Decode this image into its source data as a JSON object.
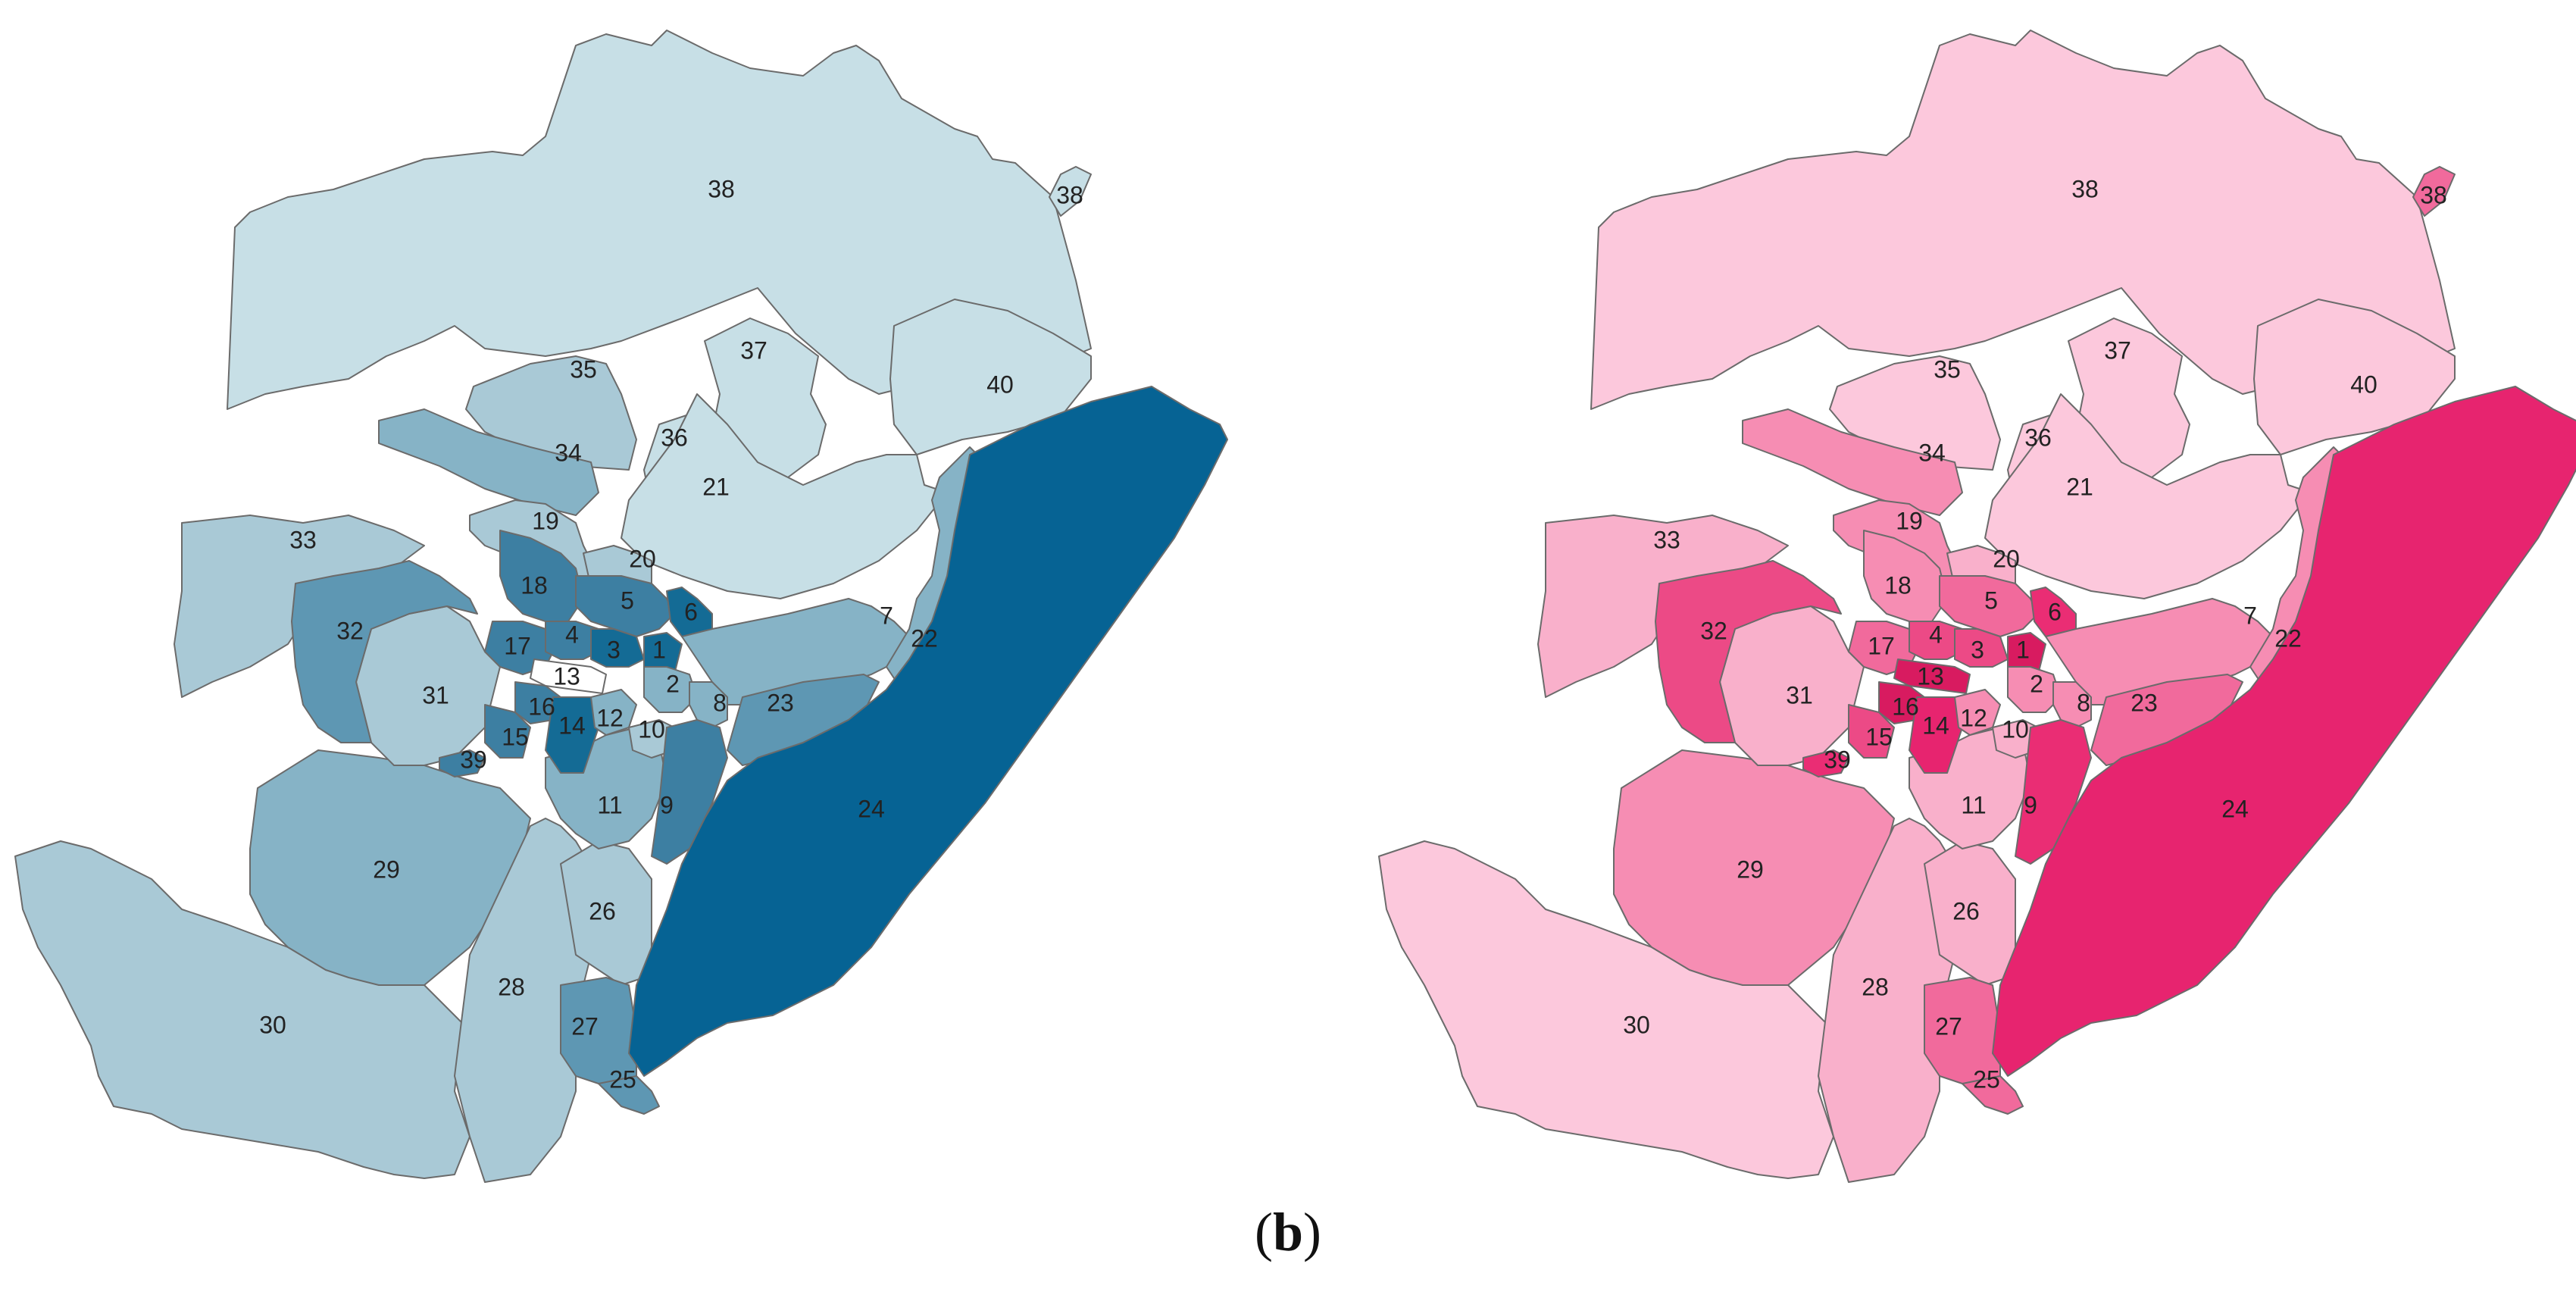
{
  "caption": {
    "open": "(",
    "letter": "b",
    "close": ")"
  },
  "maps": [
    {
      "name": "left-map",
      "palette": [
        "#c7dfe6",
        "#a9c9d6",
        "#86b3c6",
        "#5e97b3",
        "#3d7fa2",
        "#146b95",
        "#066394",
        "#ffffff"
      ],
      "districts": [
        {
          "id": "38",
          "label": "38",
          "level": 0
        },
        {
          "id": "38b",
          "label": "38",
          "level": 0
        },
        {
          "id": "40",
          "label": "40",
          "level": 0
        },
        {
          "id": "37",
          "label": "37",
          "level": 0
        },
        {
          "id": "36",
          "label": "36",
          "level": 0
        },
        {
          "id": "35",
          "label": "35",
          "level": 1
        },
        {
          "id": "34",
          "label": "34",
          "level": 2
        },
        {
          "id": "21",
          "label": "21",
          "level": 0
        },
        {
          "id": "19",
          "label": "19",
          "level": 1
        },
        {
          "id": "33",
          "label": "33",
          "level": 1
        },
        {
          "id": "30",
          "label": "30",
          "level": 1
        },
        {
          "id": "29",
          "label": "29",
          "level": 2
        },
        {
          "id": "28",
          "label": "28",
          "level": 1
        },
        {
          "id": "26",
          "label": "26",
          "level": 1
        },
        {
          "id": "27",
          "label": "27",
          "level": 3
        },
        {
          "id": "25",
          "label": "25",
          "level": 3
        },
        {
          "id": "11",
          "label": "11",
          "level": 2
        },
        {
          "id": "31",
          "label": "31",
          "level": 1
        },
        {
          "id": "32",
          "label": "32",
          "level": 3
        },
        {
          "id": "18",
          "label": "18",
          "level": 4
        },
        {
          "id": "20",
          "label": "20",
          "level": 1
        },
        {
          "id": "5",
          "label": "5",
          "level": 4
        },
        {
          "id": "6",
          "label": "6",
          "level": 5
        },
        {
          "id": "7",
          "label": "7",
          "level": 2
        },
        {
          "id": "22",
          "label": "22",
          "level": 2
        },
        {
          "id": "23",
          "label": "23",
          "level": 3
        },
        {
          "id": "24",
          "label": "24",
          "level": 6
        },
        {
          "id": "17",
          "label": "17",
          "level": 4
        },
        {
          "id": "4",
          "label": "4",
          "level": 4
        },
        {
          "id": "3",
          "label": "3",
          "level": 5
        },
        {
          "id": "1",
          "label": "1",
          "level": 5
        },
        {
          "id": "13",
          "label": "13",
          "level": 7
        },
        {
          "id": "2",
          "label": "2",
          "level": 2
        },
        {
          "id": "8",
          "label": "8",
          "level": 2
        },
        {
          "id": "16",
          "label": "16",
          "level": 4
        },
        {
          "id": "15",
          "label": "15",
          "level": 4
        },
        {
          "id": "14",
          "label": "14",
          "level": 5
        },
        {
          "id": "12",
          "label": "12",
          "level": 2
        },
        {
          "id": "10",
          "label": "10",
          "level": 1
        },
        {
          "id": "9",
          "label": "9",
          "level": 4
        },
        {
          "id": "39",
          "label": "39",
          "level": 4
        }
      ]
    },
    {
      "name": "right-map",
      "palette": [
        "#fcc8dc",
        "#f9b0cb",
        "#f68db3",
        "#f16a9c",
        "#ec4a86",
        "#ea2d74",
        "#e7246f",
        "#d81b60"
      ],
      "districts": [
        {
          "id": "38",
          "label": "38",
          "level": 0
        },
        {
          "id": "38b",
          "label": "38",
          "level": 3
        },
        {
          "id": "40",
          "label": "40",
          "level": 0
        },
        {
          "id": "37",
          "label": "37",
          "level": 0
        },
        {
          "id": "36",
          "label": "36",
          "level": 0
        },
        {
          "id": "35",
          "label": "35",
          "level": 0
        },
        {
          "id": "34",
          "label": "34",
          "level": 2
        },
        {
          "id": "21",
          "label": "21",
          "level": 0
        },
        {
          "id": "19",
          "label": "19",
          "level": 2
        },
        {
          "id": "33",
          "label": "33",
          "level": 1
        },
        {
          "id": "30",
          "label": "30",
          "level": 0
        },
        {
          "id": "29",
          "label": "29",
          "level": 2
        },
        {
          "id": "28",
          "label": "28",
          "level": 1
        },
        {
          "id": "26",
          "label": "26",
          "level": 1
        },
        {
          "id": "27",
          "label": "27",
          "level": 3
        },
        {
          "id": "25",
          "label": "25",
          "level": 3
        },
        {
          "id": "11",
          "label": "11",
          "level": 1
        },
        {
          "id": "31",
          "label": "31",
          "level": 1
        },
        {
          "id": "32",
          "label": "32",
          "level": 4
        },
        {
          "id": "18",
          "label": "18",
          "level": 2
        },
        {
          "id": "20",
          "label": "20",
          "level": 1
        },
        {
          "id": "5",
          "label": "5",
          "level": 3
        },
        {
          "id": "6",
          "label": "6",
          "level": 5
        },
        {
          "id": "7",
          "label": "7",
          "level": 2
        },
        {
          "id": "22",
          "label": "22",
          "level": 2
        },
        {
          "id": "23",
          "label": "23",
          "level": 3
        },
        {
          "id": "24",
          "label": "24",
          "level": 6
        },
        {
          "id": "17",
          "label": "17",
          "level": 3
        },
        {
          "id": "4",
          "label": "4",
          "level": 4
        },
        {
          "id": "3",
          "label": "3",
          "level": 4
        },
        {
          "id": "1",
          "label": "1",
          "level": 7
        },
        {
          "id": "13",
          "label": "13",
          "level": 7
        },
        {
          "id": "2",
          "label": "2",
          "level": 2
        },
        {
          "id": "8",
          "label": "8",
          "level": 2
        },
        {
          "id": "16",
          "label": "16",
          "level": 7
        },
        {
          "id": "15",
          "label": "15",
          "level": 4
        },
        {
          "id": "14",
          "label": "14",
          "level": 6
        },
        {
          "id": "12",
          "label": "12",
          "level": 2
        },
        {
          "id": "10",
          "label": "10",
          "level": 1
        },
        {
          "id": "9",
          "label": "9",
          "level": 5
        },
        {
          "id": "39",
          "label": "39",
          "level": 5
        }
      ]
    }
  ]
}
